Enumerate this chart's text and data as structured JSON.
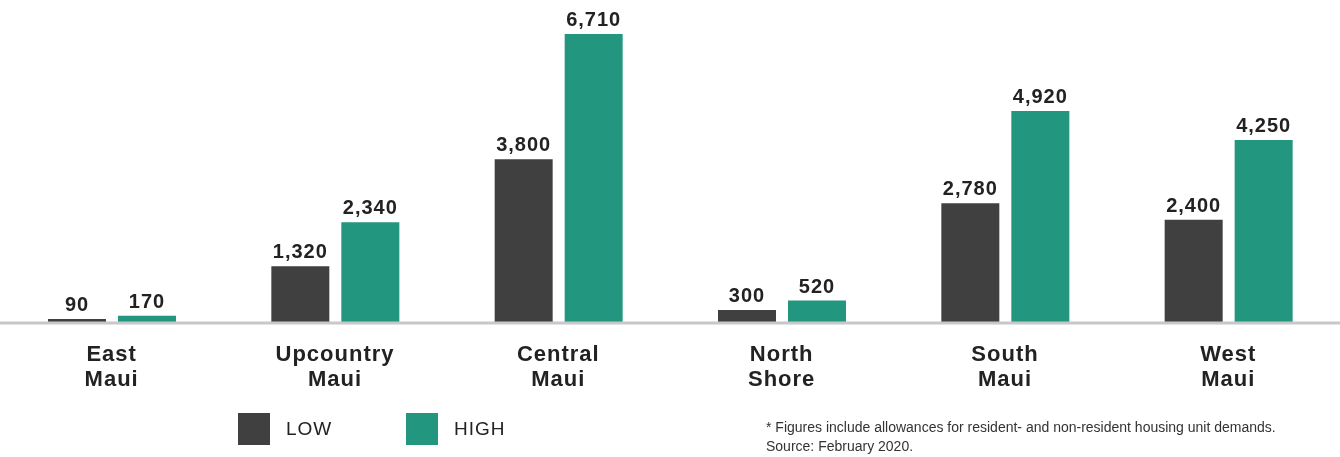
{
  "chart_data": {
    "type": "bar",
    "categories": [
      "East Maui",
      "Upcountry Maui",
      "Central Maui",
      "North Shore",
      "South Maui",
      "West Maui"
    ],
    "series": [
      {
        "name": "LOW",
        "color": "#404040",
        "values": [
          90,
          1320,
          3800,
          300,
          2780,
          2400
        ],
        "value_labels": [
          "90",
          "1,320",
          "3,800",
          "300",
          "2,780",
          "2,400"
        ]
      },
      {
        "name": "HIGH",
        "color": "#23967f",
        "values": [
          170,
          2340,
          6710,
          520,
          4920,
          4250
        ],
        "value_labels": [
          "170",
          "2,340",
          "6,710",
          "520",
          "4,920",
          "4,250"
        ]
      }
    ],
    "legend": "bottom left",
    "annotations": [
      "* Figures include allowances for resident- and non-resident housing unit demands.",
      "Source: February 2020."
    ]
  }
}
